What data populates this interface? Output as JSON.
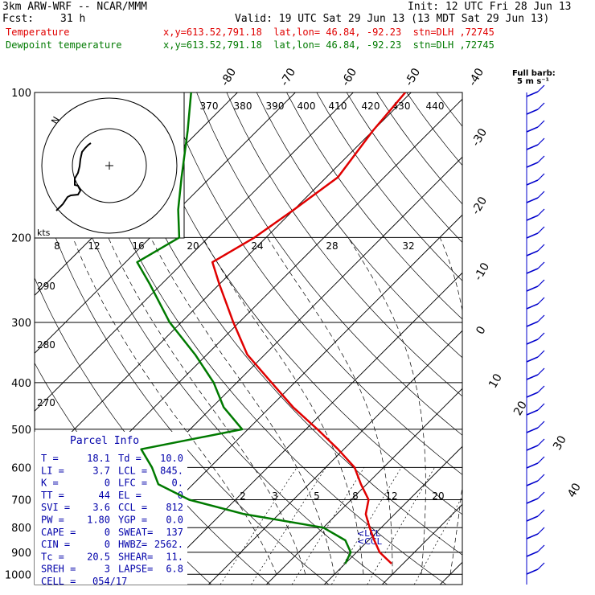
{
  "header": {
    "model": "3km ARW-WRF -- NCAR/MMM",
    "init": "Init: 12 UTC Fri 28 Jun 13",
    "fcst_label": "Fcst:",
    "fcst_value": "31 h",
    "valid": "Valid: 19 UTC Sat 29 Jun 13 (13 MDT Sat 29 Jun 13)",
    "temp_label": "Temperature",
    "temp_info": "x,y=613.52,791.18  lat,lon= 46.84, -92.23  stn=DLH ,72745",
    "dew_label": "Dewpoint temperature",
    "dew_info": "x,y=613.52,791.18  lat,lon= 46.84, -92.23  stn=DLH ,72745"
  },
  "colors": {
    "temperature": "#e00000",
    "dewpoint": "#007a00",
    "grid": "#000000",
    "barbs": "#0000cc"
  },
  "barb_header": {
    "line1": "Full barb:",
    "line2": "5 m s⁻¹"
  },
  "parcel_box": {
    "title": "Parcel Info",
    "rows": [
      [
        "T  =",
        "18.1",
        "Td =",
        "10.0"
      ],
      [
        "LI =",
        "3.7",
        "LCL =",
        "845."
      ],
      [
        "K  =",
        "0",
        "LFC =",
        "0."
      ],
      [
        "TT =",
        "44",
        "EL  =",
        "0"
      ],
      [
        "SVI =",
        "3.6",
        "CCL =",
        "812"
      ],
      [
        "PW =",
        "1.80",
        "YGP =",
        "0.0"
      ],
      [
        "CAPE =",
        "0",
        "SWEAT=",
        "137"
      ],
      [
        "CIN =",
        "0",
        "HWBZ=",
        "2562."
      ],
      [
        "Tc =",
        "20.5",
        "SHEAR=",
        "11."
      ],
      [
        "SREH =",
        "3",
        "LAPSE=",
        "6.8"
      ],
      [
        "CELL =",
        "054/17",
        "",
        ""
      ]
    ]
  },
  "hodo_labels": {
    "units": "kts",
    "rings": [
      "8",
      "12",
      "16",
      "20",
      "24",
      "28",
      "32"
    ],
    "dir": "N"
  },
  "theta_labels": [
    "370",
    "380",
    "390",
    "400",
    "410",
    "420",
    "430",
    "440"
  ],
  "left_theta_labels": [
    "290",
    "280",
    "270"
  ],
  "mixing_labels": [
    "2",
    "3",
    "5",
    "8",
    "12",
    "20"
  ],
  "lcl_labels": [
    "LCL",
    "CCL"
  ],
  "chart_data": {
    "type": "line",
    "title": "",
    "ylabel": "",
    "pressure_ticks": [
      100,
      200,
      300,
      400,
      500,
      600,
      700,
      800,
      900,
      1000
    ],
    "temperature_isotherm_labels": [
      -80,
      -70,
      -60,
      -50,
      -40,
      -30,
      -20,
      -10,
      0,
      10,
      20,
      30,
      40
    ],
    "series": [
      {
        "name": "Temperature",
        "pressure": [
          100,
          120,
          150,
          175,
          200,
          225,
          250,
          300,
          350,
          400,
          450,
          500,
          550,
          600,
          650,
          700,
          750,
          800,
          850,
          900,
          950
        ],
        "values": [
          -61,
          -60,
          -58,
          -60,
          -62,
          -65,
          -60,
          -51,
          -43,
          -34,
          -26,
          -18,
          -11,
          -5,
          -1,
          3,
          5,
          8,
          11,
          14,
          18
        ]
      },
      {
        "name": "Dewpoint temperature",
        "pressure": [
          100,
          120,
          150,
          175,
          200,
          225,
          250,
          300,
          350,
          400,
          450,
          500,
          550,
          600,
          650,
          700,
          750,
          800,
          850,
          900,
          950
        ],
        "values": [
          -98,
          -92,
          -85,
          -80,
          -75,
          -78,
          -72,
          -62,
          -52,
          -44,
          -38,
          -31,
          -45,
          -40,
          -36,
          -28,
          -16,
          0,
          6,
          9,
          10
        ]
      }
    ]
  }
}
